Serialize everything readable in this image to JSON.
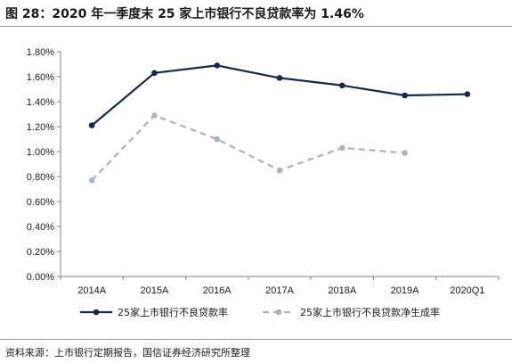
{
  "figure": {
    "title": "图 28：2020 年一季度末 25 家上市银行不良贷款率为 1.46%",
    "source": "资料来源：上市银行定期报告，国信证券经济研究所整理"
  },
  "colors": {
    "series1": "#13274f",
    "series2": "#a7b4c6",
    "axis": "#808080",
    "divider": "#9a9a9a"
  },
  "chart_data": {
    "type": "line",
    "categories": [
      "2014A",
      "2015A",
      "2016A",
      "2017A",
      "2018A",
      "2019A",
      "2020Q1"
    ],
    "y_ticks": [
      "0.00%",
      "0.20%",
      "0.40%",
      "0.60%",
      "0.80%",
      "1.00%",
      "1.20%",
      "1.40%",
      "1.60%",
      "1.80%"
    ],
    "ylim": [
      0,
      1.8
    ],
    "grid": false,
    "legend_position": "bottom",
    "series": [
      {
        "name": "25家上市银行不良贷款率",
        "style": "solid",
        "values": [
          1.21,
          1.63,
          1.69,
          1.59,
          1.53,
          1.45,
          1.46
        ]
      },
      {
        "name": "25家上市银行不良贷款净生成率",
        "style": "dashed",
        "values": [
          0.77,
          1.29,
          1.1,
          0.85,
          1.03,
          0.99,
          null
        ]
      }
    ]
  }
}
